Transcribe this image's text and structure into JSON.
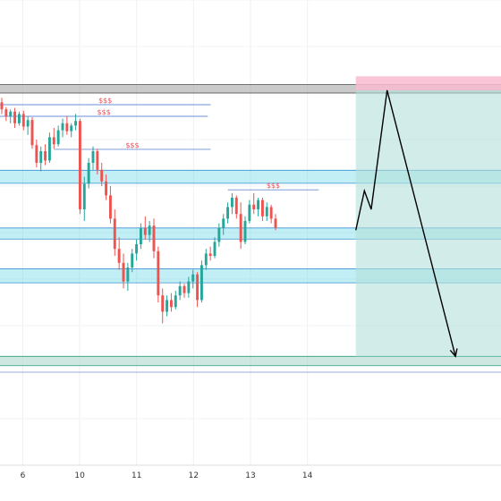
{
  "chart_data": {
    "type": "candlestick",
    "title": "",
    "xlabel": "",
    "ylabel": "",
    "x_ticks": [
      "6",
      "10",
      "11",
      "12",
      "13",
      "14"
    ],
    "x_range": [
      5.6,
      14.4
    ],
    "y_range": [
      0,
      100
    ],
    "grid": true,
    "colors": {
      "up": "#26a69a",
      "down": "#ef5350",
      "zone": "#4dd0e1",
      "zone_line": "#3a8fd0",
      "liquidity_line": "#6b8fd4",
      "liquidity_label": "#e8505b",
      "profit_box": "#b2dfdb",
      "loss_box": "#f8bbd0",
      "path": "#000000",
      "resistance": "#9e9e9e"
    },
    "resistance_zone": {
      "y_low": 80.0,
      "y_high": 81.8
    },
    "demand_zones": [
      {
        "y_low": 60.6,
        "y_high": 63.4
      },
      {
        "y_low": 48.6,
        "y_high": 51.0
      },
      {
        "y_low": 39.2,
        "y_high": 42.2
      }
    ],
    "target_zone": {
      "y_low": 21.4,
      "y_high": 23.4
    },
    "liquidity_levels": [
      {
        "label": "$$$",
        "y": 77.5,
        "x_start": 5.6,
        "x_end": 9.3
      },
      {
        "label": "$$$",
        "y": 75.0,
        "x_start": 5.6,
        "x_end": 9.25
      },
      {
        "label": "$$$",
        "y": 67.9,
        "x_start": 6.55,
        "x_end": 9.3
      },
      {
        "label": "$$$",
        "y": 59.2,
        "x_start": 11.2,
        "x_end": 9.6
      }
    ],
    "position": {
      "side": "short",
      "entry": 80.6,
      "stop": 83.6,
      "target": 23.4,
      "x_start": 11.85,
      "x_end": 14.4
    },
    "projected_path": [
      {
        "x": 11.85,
        "y": 50.5
      },
      {
        "x": 12.0,
        "y": 59.0
      },
      {
        "x": 12.12,
        "y": 55.0
      },
      {
        "x": 12.4,
        "y": 80.6
      },
      {
        "x": 13.6,
        "y": 23.4
      }
    ],
    "candles_ohlc": [
      [
        78.0,
        79.0,
        75.5,
        76.5
      ],
      [
        76.5,
        77.0,
        74.0,
        75.0
      ],
      [
        75.0,
        76.5,
        73.5,
        76.0
      ],
      [
        76.0,
        76.8,
        72.5,
        73.5
      ],
      [
        73.5,
        76.0,
        73.0,
        75.5
      ],
      [
        75.5,
        76.2,
        72.0,
        72.8
      ],
      [
        72.8,
        75.0,
        71.0,
        74.2
      ],
      [
        74.2,
        74.8,
        68.0,
        68.8
      ],
      [
        68.8,
        70.0,
        64.0,
        65.0
      ],
      [
        65.0,
        68.5,
        63.2,
        67.5
      ],
      [
        67.5,
        69.0,
        64.5,
        65.5
      ],
      [
        65.5,
        71.5,
        65.0,
        70.5
      ],
      [
        70.5,
        72.5,
        68.0,
        69.0
      ],
      [
        69.0,
        73.0,
        68.5,
        72.0
      ],
      [
        72.0,
        74.5,
        70.5,
        73.5
      ],
      [
        73.5,
        75.0,
        71.0,
        71.8
      ],
      [
        71.8,
        73.5,
        70.5,
        73.0
      ],
      [
        73.0,
        75.5,
        72.0,
        74.0
      ],
      [
        74.0,
        74.5,
        54.0,
        55.0
      ],
      [
        55.0,
        62.0,
        52.5,
        60.5
      ],
      [
        60.5,
        66.0,
        59.5,
        65.0
      ],
      [
        65.0,
        68.5,
        63.5,
        67.5
      ],
      [
        67.5,
        68.0,
        62.5,
        63.5
      ],
      [
        63.5,
        65.0,
        60.0,
        61.0
      ],
      [
        61.0,
        62.5,
        57.0,
        58.0
      ],
      [
        58.0,
        60.0,
        52.0,
        53.0
      ],
      [
        53.0,
        55.0,
        45.0,
        46.5
      ],
      [
        46.5,
        49.0,
        42.0,
        43.5
      ],
      [
        43.5,
        45.5,
        38.0,
        39.5
      ],
      [
        39.5,
        43.5,
        37.5,
        42.5
      ],
      [
        42.5,
        46.5,
        41.5,
        45.5
      ],
      [
        45.5,
        48.5,
        44.0,
        47.5
      ],
      [
        47.5,
        52.0,
        46.5,
        51.0
      ],
      [
        51.0,
        53.5,
        48.5,
        49.5
      ],
      [
        49.5,
        52.5,
        48.0,
        51.5
      ],
      [
        51.5,
        53.0,
        44.5,
        46.0
      ],
      [
        46.0,
        47.0,
        35.0,
        36.5
      ],
      [
        36.5,
        38.0,
        30.5,
        33.0
      ],
      [
        33.0,
        36.5,
        32.0,
        35.5
      ],
      [
        35.5,
        37.0,
        33.0,
        34.0
      ],
      [
        34.0,
        37.5,
        33.5,
        36.5
      ],
      [
        36.5,
        39.5,
        35.5,
        38.5
      ],
      [
        38.5,
        39.0,
        36.0,
        37.0
      ],
      [
        37.0,
        40.5,
        36.0,
        39.5
      ],
      [
        39.5,
        42.0,
        38.0,
        41.0
      ],
      [
        41.0,
        41.5,
        34.0,
        35.5
      ],
      [
        35.5,
        44.0,
        35.0,
        43.0
      ],
      [
        43.0,
        46.5,
        42.0,
        45.5
      ],
      [
        45.5,
        47.0,
        44.0,
        45.0
      ],
      [
        45.0,
        49.0,
        44.5,
        48.0
      ],
      [
        48.0,
        52.0,
        47.0,
        51.0
      ],
      [
        51.0,
        54.0,
        49.5,
        53.0
      ],
      [
        53.0,
        56.5,
        52.0,
        55.5
      ],
      [
        55.5,
        58.5,
        54.0,
        57.5
      ],
      [
        57.5,
        58.0,
        53.0,
        54.0
      ],
      [
        54.0,
        56.5,
        46.5,
        48.0
      ],
      [
        48.0,
        53.5,
        47.5,
        52.5
      ],
      [
        52.5,
        57.0,
        52.0,
        56.0
      ],
      [
        56.0,
        58.5,
        54.0,
        55.0
      ],
      [
        55.0,
        57.5,
        53.5,
        57.0
      ],
      [
        57.0,
        57.5,
        52.5,
        53.5
      ],
      [
        53.5,
        56.5,
        52.5,
        55.5
      ],
      [
        55.5,
        56.0,
        52.0,
        53.0
      ],
      [
        53.0,
        54.0,
        50.5,
        51.0
      ]
    ]
  }
}
